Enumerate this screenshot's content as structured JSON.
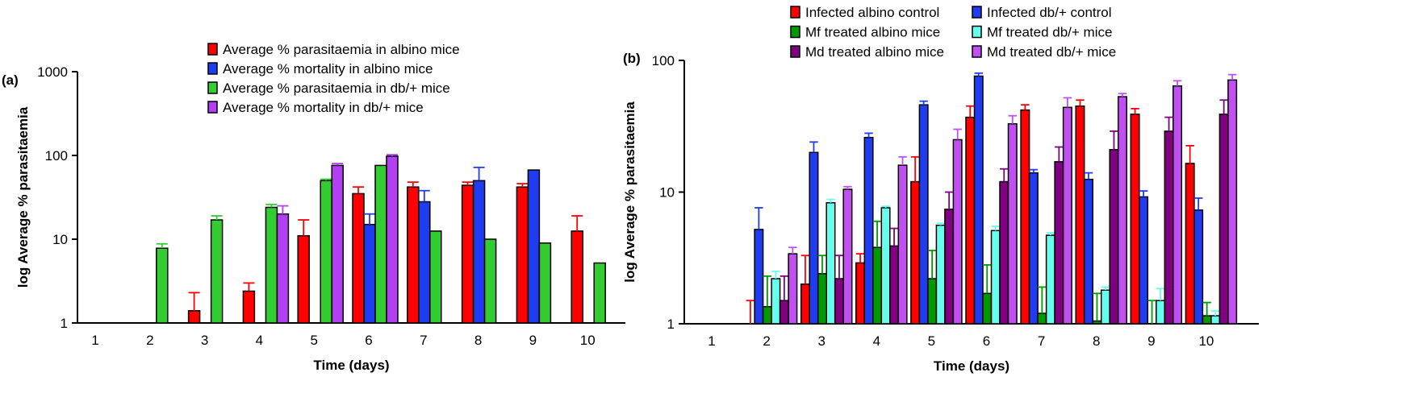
{
  "chart_data": [
    {
      "type": "bar",
      "panel_label": "(a)",
      "xlabel": "Time (days)",
      "ylabel": "log Average % parasitaemia",
      "yscale": "log",
      "ylim": [
        1,
        1000
      ],
      "yticks": [
        "1",
        "10",
        "100",
        "1000"
      ],
      "categories": [
        "1",
        "2",
        "3",
        "4",
        "5",
        "6",
        "7",
        "8",
        "9",
        "10"
      ],
      "legend_position": "top",
      "series": [
        {
          "name": "Average % parasitaemia in albino mice",
          "color": "#ff0000",
          "values": [
            null,
            null,
            1.4,
            2.4,
            11,
            35,
            42,
            44,
            42,
            12.5
          ],
          "error_upper": [
            null,
            null,
            2.3,
            3.0,
            17,
            42,
            48,
            48,
            46,
            19
          ]
        },
        {
          "name": "Average % mortality in albino mice",
          "color": "#1f3cf0",
          "values": [
            null,
            null,
            null,
            null,
            null,
            15,
            28,
            50,
            67,
            null
          ],
          "error_upper": [
            null,
            null,
            null,
            null,
            null,
            20,
            38,
            72,
            null,
            null
          ]
        },
        {
          "name": "Average % parasitaemia in db/+ mice",
          "color": "#33cc33",
          "values": [
            null,
            7.8,
            17,
            24,
            50,
            76,
            12.5,
            10,
            9,
            5.2
          ],
          "error_upper": [
            null,
            8.8,
            19,
            26,
            52,
            null,
            null,
            null,
            null,
            null
          ]
        },
        {
          "name": "Average % mortality in db/+ mice",
          "color": "#b040f0",
          "values": [
            null,
            null,
            null,
            20,
            76,
            98,
            null,
            null,
            null,
            null
          ],
          "error_upper": [
            null,
            null,
            null,
            25,
            80,
            102,
            null,
            null,
            null,
            null
          ]
        }
      ]
    },
    {
      "type": "bar",
      "panel_label": "(b)",
      "xlabel": "Time (days)",
      "ylabel": "log Average % parasitaemia",
      "yscale": "log",
      "ylim": [
        1,
        100
      ],
      "yticks": [
        "1",
        "10",
        "100"
      ],
      "categories": [
        "1",
        "2",
        "3",
        "4",
        "5",
        "6",
        "7",
        "8",
        "9",
        "10"
      ],
      "legend_position": "top",
      "series": [
        {
          "name": "Infected albino control",
          "color": "#ff0000",
          "values": [
            null,
            1.0,
            2.0,
            2.9,
            12,
            37,
            42,
            45,
            39,
            16.5
          ],
          "error_upper": [
            null,
            1.5,
            3.3,
            3.4,
            18.5,
            45,
            46,
            50,
            43,
            22.5
          ]
        },
        {
          "name": "Infected db/+ control",
          "color": "#1f3cf0",
          "values": [
            null,
            5.2,
            20,
            26,
            46,
            76,
            14,
            12.5,
            9.2,
            7.3
          ],
          "error_upper": [
            null,
            7.6,
            24,
            28,
            49,
            80,
            14.8,
            14,
            10.2,
            9
          ]
        },
        {
          "name": "Mf treated albino mice",
          "color": "#009900",
          "values": [
            null,
            1.35,
            2.4,
            3.8,
            2.2,
            1.7,
            1.2,
            1.05,
            1.0,
            1.15
          ],
          "error_upper": [
            null,
            2.3,
            3.3,
            6,
            3.6,
            2.8,
            1.9,
            1.7,
            1.5,
            1.45
          ]
        },
        {
          "name": "Mf treated db/+ mice",
          "color": "#66ffee",
          "values": [
            null,
            2.2,
            8.3,
            7.6,
            5.6,
            5.1,
            4.7,
            1.8,
            1.5,
            1.15
          ],
          "error_upper": [
            null,
            2.5,
            8.8,
            7.8,
            5.8,
            5.5,
            4.9,
            1.9,
            1.85,
            1.25
          ]
        },
        {
          "name": "Md treated albino mice",
          "color": "#800080",
          "values": [
            null,
            1.5,
            2.2,
            3.9,
            7.4,
            12,
            17,
            21,
            29,
            39
          ],
          "error_upper": [
            null,
            2.3,
            3.3,
            5.3,
            10,
            15,
            22,
            29,
            37,
            50
          ]
        },
        {
          "name": "Md treated db/+ mice",
          "color": "#c050f0",
          "values": [
            null,
            3.4,
            10.5,
            16,
            25,
            33,
            44,
            53,
            64,
            71
          ],
          "error_upper": [
            null,
            3.8,
            11,
            18.5,
            30,
            38,
            52,
            56,
            70,
            78
          ]
        }
      ]
    }
  ]
}
